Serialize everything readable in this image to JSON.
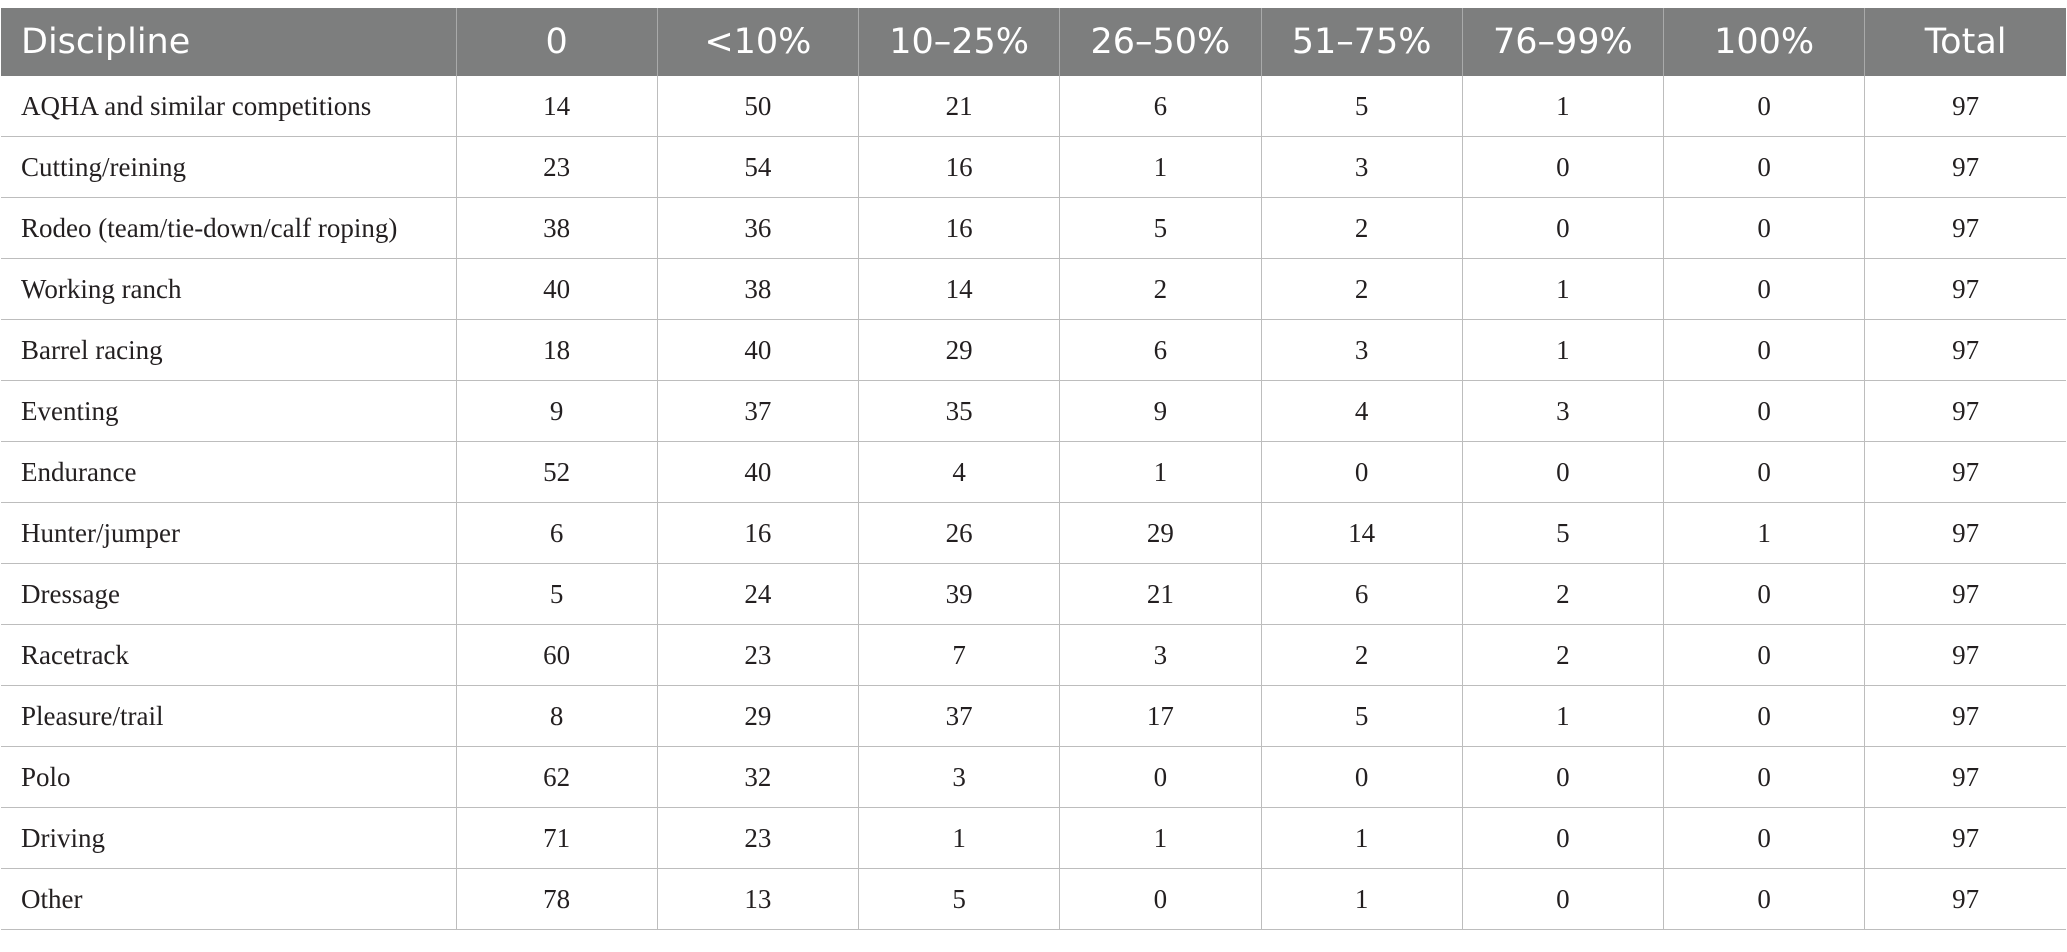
{
  "table": {
    "headers": [
      "Discipline",
      "0",
      "<10%",
      "10–25%",
      "26–50%",
      "51–75%",
      "76–99%",
      "100%",
      "Total"
    ],
    "rows": [
      [
        "AQHA and similar competitions",
        "14",
        "50",
        "21",
        "6",
        "5",
        "1",
        "0",
        "97"
      ],
      [
        "Cutting/reining",
        "23",
        "54",
        "16",
        "1",
        "3",
        "0",
        "0",
        "97"
      ],
      [
        "Rodeo (team/tie-down/calf roping)",
        "38",
        "36",
        "16",
        "5",
        "2",
        "0",
        "0",
        "97"
      ],
      [
        "Working ranch",
        "40",
        "38",
        "14",
        "2",
        "2",
        "1",
        "0",
        "97"
      ],
      [
        "Barrel racing",
        "18",
        "40",
        "29",
        "6",
        "3",
        "1",
        "0",
        "97"
      ],
      [
        "Eventing",
        "9",
        "37",
        "35",
        "9",
        "4",
        "3",
        "0",
        "97"
      ],
      [
        "Endurance",
        "52",
        "40",
        "4",
        "1",
        "0",
        "0",
        "0",
        "97"
      ],
      [
        "Hunter/jumper",
        "6",
        "16",
        "26",
        "29",
        "14",
        "5",
        "1",
        "97"
      ],
      [
        "Dressage",
        "5",
        "24",
        "39",
        "21",
        "6",
        "2",
        "0",
        "97"
      ],
      [
        "Racetrack",
        "60",
        "23",
        "7",
        "3",
        "2",
        "2",
        "0",
        "97"
      ],
      [
        "Pleasure/trail",
        "8",
        "29",
        "37",
        "17",
        "5",
        "1",
        "0",
        "97"
      ],
      [
        "Polo",
        "62",
        "32",
        "3",
        "0",
        "0",
        "0",
        "0",
        "97"
      ],
      [
        "Driving",
        "71",
        "23",
        "1",
        "1",
        "1",
        "0",
        "0",
        "97"
      ],
      [
        "Other",
        "78",
        "13",
        "5",
        "0",
        "1",
        "0",
        "0",
        "97"
      ]
    ]
  },
  "colors": {
    "header_bg": "#7d7e7e",
    "header_text": "#ffffff",
    "grid_line": "#bdbdbd",
    "body_text": "#231f20"
  }
}
